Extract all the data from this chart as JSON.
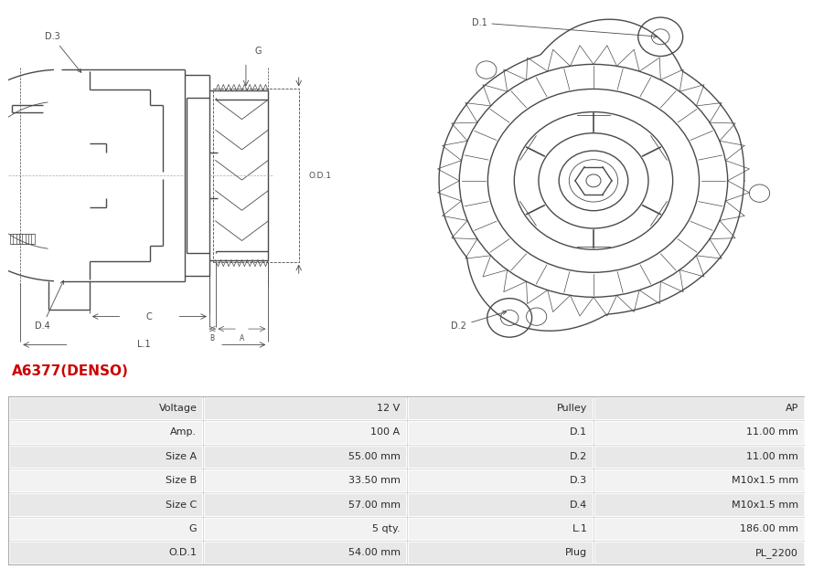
{
  "title": "A6377(DENSO)",
  "title_color": "#cc0000",
  "bg_color": "#ffffff",
  "line_color": "#4a4a4a",
  "dim_color": "#4a4a4a",
  "table_data": [
    [
      "Voltage",
      "12 V",
      "Pulley",
      "AP"
    ],
    [
      "Amp.",
      "100 A",
      "D.1",
      "11.00 mm"
    ],
    [
      "Size A",
      "55.00 mm",
      "D.2",
      "11.00 mm"
    ],
    [
      "Size B",
      "33.50 mm",
      "D.3",
      "M10x1.5 mm"
    ],
    [
      "Size C",
      "57.00 mm",
      "D.4",
      "M10x1.5 mm"
    ],
    [
      "G",
      "5 qty.",
      "L.1",
      "186.00 mm"
    ],
    [
      "O.D.1",
      "54.00 mm",
      "Plug",
      "PL_2200"
    ]
  ],
  "table_row_bg_odd": "#e8e8e8",
  "table_row_bg_even": "#f2f2f2",
  "table_border_color": "#ffffff"
}
